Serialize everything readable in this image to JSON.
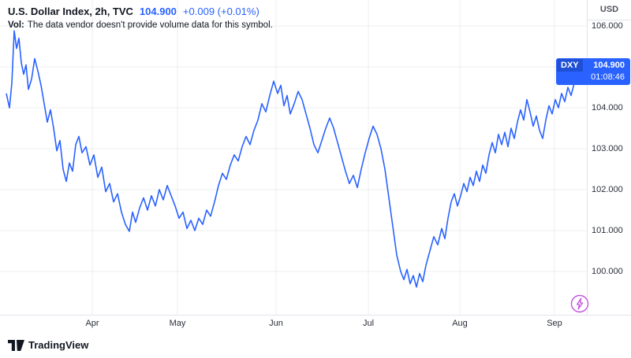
{
  "header": {
    "symbol_title": "U.S. Dollar Index, 2h, TVC",
    "price": "104.900",
    "change": "+0.009 (+0.01%)",
    "vol_label": "Vol:",
    "vol_message": "The data vendor doesn't provide volume data for this symbol."
  },
  "price_scale": {
    "currency": "USD",
    "labels": [
      "106.000",
      "104.000",
      "103.000",
      "102.000",
      "101.000",
      "100.000"
    ],
    "values": [
      106,
      104,
      103,
      102,
      101,
      100
    ],
    "grid_values": [
      106,
      105,
      104,
      103,
      102,
      101,
      100
    ]
  },
  "badge": {
    "symbol": "DXY",
    "price": "104.900",
    "countdown": "01:08:46",
    "bg_color": "#2962ff"
  },
  "footer": {
    "brand": "TradingView"
  },
  "colors": {
    "line": "#2962ff",
    "grid": "rgba(42,46,57,0.08)",
    "axis_border": "#e0e3eb",
    "bolt": "#c352e0"
  },
  "chart_data": {
    "type": "line",
    "title": "U.S. Dollar Index, 2h, TVC",
    "series_name": "DXY",
    "last_price": 104.9,
    "ylim": [
      99.5,
      106.1
    ],
    "x_axis": {
      "labels": [
        "Apr",
        "May",
        "Jun",
        "Jul",
        "Aug",
        "Sep"
      ],
      "tick_x": [
        117,
        225,
        350,
        467,
        583,
        703
      ]
    },
    "y_axis_label_format": "#.000",
    "legend_position": "none",
    "grid": true,
    "points": [
      [
        8,
        104.35
      ],
      [
        12,
        104.0
      ],
      [
        15,
        104.6
      ],
      [
        18,
        105.88
      ],
      [
        21,
        105.45
      ],
      [
        24,
        105.7
      ],
      [
        27,
        105.1
      ],
      [
        30,
        104.82
      ],
      [
        33,
        105.05
      ],
      [
        36,
        104.45
      ],
      [
        40,
        104.7
      ],
      [
        44,
        105.2
      ],
      [
        48,
        104.9
      ],
      [
        52,
        104.55
      ],
      [
        56,
        104.1
      ],
      [
        60,
        103.65
      ],
      [
        64,
        103.95
      ],
      [
        68,
        103.5
      ],
      [
        72,
        102.95
      ],
      [
        76,
        103.2
      ],
      [
        80,
        102.5
      ],
      [
        84,
        102.2
      ],
      [
        88,
        102.65
      ],
      [
        92,
        102.45
      ],
      [
        96,
        103.1
      ],
      [
        100,
        103.3
      ],
      [
        104,
        102.9
      ],
      [
        109,
        103.05
      ],
      [
        114,
        102.6
      ],
      [
        119,
        102.85
      ],
      [
        124,
        102.3
      ],
      [
        129,
        102.55
      ],
      [
        134,
        101.95
      ],
      [
        139,
        102.15
      ],
      [
        144,
        101.7
      ],
      [
        149,
        101.9
      ],
      [
        154,
        101.45
      ],
      [
        159,
        101.15
      ],
      [
        164,
        100.98
      ],
      [
        168,
        101.45
      ],
      [
        172,
        101.2
      ],
      [
        177,
        101.55
      ],
      [
        182,
        101.8
      ],
      [
        187,
        101.5
      ],
      [
        192,
        101.85
      ],
      [
        197,
        101.6
      ],
      [
        202,
        102.0
      ],
      [
        207,
        101.75
      ],
      [
        212,
        102.1
      ],
      [
        217,
        101.85
      ],
      [
        222,
        101.6
      ],
      [
        227,
        101.3
      ],
      [
        232,
        101.45
      ],
      [
        237,
        101.05
      ],
      [
        242,
        101.25
      ],
      [
        247,
        101.0
      ],
      [
        252,
        101.3
      ],
      [
        257,
        101.15
      ],
      [
        262,
        101.5
      ],
      [
        267,
        101.35
      ],
      [
        272,
        101.7
      ],
      [
        277,
        102.1
      ],
      [
        282,
        102.4
      ],
      [
        287,
        102.25
      ],
      [
        292,
        102.6
      ],
      [
        297,
        102.85
      ],
      [
        302,
        102.7
      ],
      [
        307,
        103.05
      ],
      [
        312,
        103.3
      ],
      [
        317,
        103.1
      ],
      [
        322,
        103.45
      ],
      [
        327,
        103.7
      ],
      [
        332,
        104.1
      ],
      [
        337,
        103.9
      ],
      [
        342,
        104.3
      ],
      [
        347,
        104.65
      ],
      [
        352,
        104.35
      ],
      [
        356,
        104.55
      ],
      [
        360,
        104.05
      ],
      [
        364,
        104.3
      ],
      [
        368,
        103.85
      ],
      [
        373,
        104.1
      ],
      [
        378,
        104.4
      ],
      [
        383,
        104.2
      ],
      [
        388,
        103.85
      ],
      [
        393,
        103.5
      ],
      [
        398,
        103.1
      ],
      [
        403,
        102.9
      ],
      [
        408,
        103.2
      ],
      [
        413,
        103.5
      ],
      [
        418,
        103.75
      ],
      [
        423,
        103.5
      ],
      [
        428,
        103.15
      ],
      [
        433,
        102.8
      ],
      [
        438,
        102.45
      ],
      [
        443,
        102.15
      ],
      [
        448,
        102.35
      ],
      [
        453,
        102.05
      ],
      [
        458,
        102.5
      ],
      [
        463,
        102.9
      ],
      [
        468,
        103.25
      ],
      [
        473,
        103.55
      ],
      [
        478,
        103.35
      ],
      [
        483,
        103.0
      ],
      [
        488,
        102.5
      ],
      [
        493,
        101.8
      ],
      [
        498,
        101.1
      ],
      [
        503,
        100.4
      ],
      [
        508,
        100.0
      ],
      [
        512,
        99.8
      ],
      [
        516,
        100.05
      ],
      [
        520,
        99.7
      ],
      [
        524,
        99.9
      ],
      [
        528,
        99.62
      ],
      [
        532,
        99.95
      ],
      [
        536,
        99.75
      ],
      [
        540,
        100.15
      ],
      [
        545,
        100.5
      ],
      [
        550,
        100.85
      ],
      [
        555,
        100.65
      ],
      [
        560,
        101.05
      ],
      [
        564,
        100.8
      ],
      [
        568,
        101.3
      ],
      [
        572,
        101.7
      ],
      [
        576,
        101.9
      ],
      [
        580,
        101.6
      ],
      [
        584,
        101.85
      ],
      [
        588,
        102.15
      ],
      [
        592,
        101.95
      ],
      [
        596,
        102.3
      ],
      [
        600,
        102.1
      ],
      [
        604,
        102.45
      ],
      [
        608,
        102.2
      ],
      [
        612,
        102.6
      ],
      [
        616,
        102.4
      ],
      [
        620,
        102.85
      ],
      [
        624,
        103.15
      ],
      [
        628,
        102.9
      ],
      [
        632,
        103.35
      ],
      [
        636,
        103.1
      ],
      [
        640,
        103.4
      ],
      [
        644,
        103.05
      ],
      [
        648,
        103.5
      ],
      [
        652,
        103.25
      ],
      [
        656,
        103.65
      ],
      [
        660,
        103.95
      ],
      [
        664,
        103.7
      ],
      [
        668,
        104.2
      ],
      [
        672,
        103.9
      ],
      [
        676,
        103.55
      ],
      [
        680,
        103.8
      ],
      [
        684,
        103.45
      ],
      [
        688,
        103.25
      ],
      [
        692,
        103.7
      ],
      [
        696,
        104.05
      ],
      [
        700,
        103.85
      ],
      [
        704,
        104.2
      ],
      [
        708,
        104.0
      ],
      [
        712,
        104.35
      ],
      [
        716,
        104.15
      ],
      [
        720,
        104.5
      ],
      [
        724,
        104.3
      ],
      [
        728,
        104.6
      ],
      [
        732,
        104.85
      ],
      [
        736,
        104.7
      ],
      [
        740,
        104.95
      ],
      [
        745,
        104.9
      ]
    ]
  }
}
